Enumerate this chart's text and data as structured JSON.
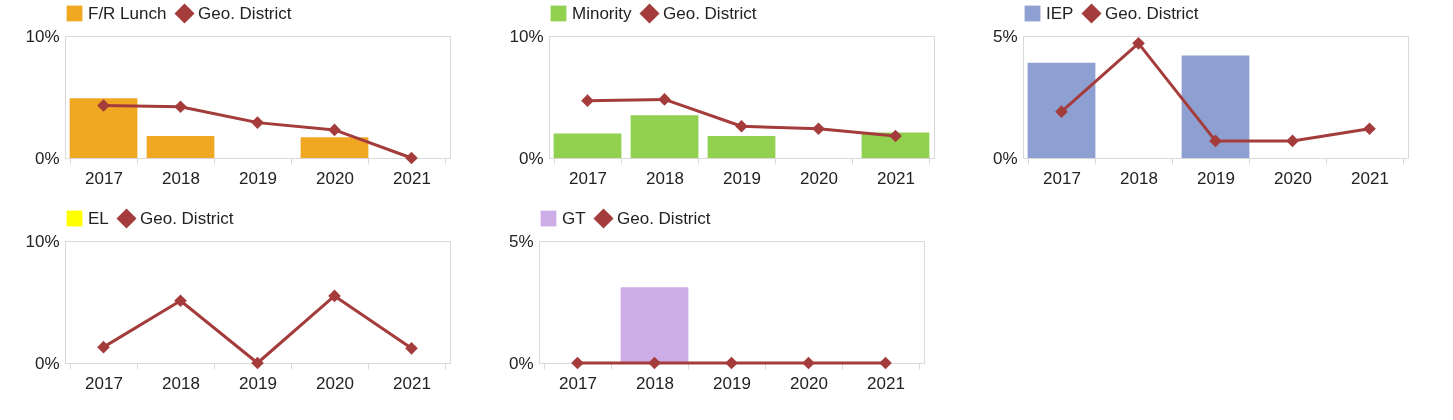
{
  "chart_data": [
    {
      "type": "bar",
      "categories": [
        "2017",
        "2018",
        "2019",
        "2020",
        "2021"
      ],
      "ylim": [
        0,
        10
      ],
      "yticks": [
        {
          "value": 0,
          "label": "0%"
        },
        {
          "value": 10,
          "label": "10%"
        }
      ],
      "legend": "top",
      "marker": "diamond",
      "series": [
        {
          "name": "F/R Lunch",
          "color": "#f0a823",
          "values": [
            4.9,
            1.8,
            0,
            1.7,
            0
          ]
        },
        {
          "name": "Geo. District",
          "type": "line",
          "color": "#a53c3c",
          "values": [
            4.3,
            4.2,
            2.9,
            2.3,
            0
          ]
        }
      ]
    },
    {
      "type": "bar",
      "categories": [
        "2017",
        "2018",
        "2019",
        "2020",
        "2021"
      ],
      "ylim": [
        0,
        10
      ],
      "yticks": [
        {
          "value": 0,
          "label": "0%"
        },
        {
          "value": 10,
          "label": "10%"
        }
      ],
      "legend": "top",
      "marker": "diamond",
      "series": [
        {
          "name": "Minority",
          "color": "#92d050",
          "values": [
            2.0,
            3.5,
            1.8,
            0,
            2.1
          ]
        },
        {
          "name": "Geo. District",
          "type": "line",
          "color": "#a53c3c",
          "values": [
            4.7,
            4.8,
            2.6,
            2.4,
            1.8
          ]
        }
      ]
    },
    {
      "type": "bar",
      "categories": [
        "2017",
        "2018",
        "2019",
        "2020",
        "2021"
      ],
      "ylim": [
        0,
        5
      ],
      "yticks": [
        {
          "value": 0,
          "label": "0%"
        },
        {
          "value": 5,
          "label": "5%"
        }
      ],
      "legend": "top",
      "marker": "diamond",
      "series": [
        {
          "name": "IEP",
          "color": "#8e9fd1",
          "values": [
            3.9,
            0,
            4.2,
            0,
            0
          ]
        },
        {
          "name": "Geo. District",
          "type": "line",
          "color": "#a53c3c",
          "values": [
            1.9,
            4.7,
            0.7,
            0.7,
            1.2
          ]
        }
      ]
    },
    {
      "type": "bar",
      "categories": [
        "2017",
        "2018",
        "2019",
        "2020",
        "2021"
      ],
      "ylim": [
        0,
        10
      ],
      "yticks": [
        {
          "value": 0,
          "label": "0%"
        },
        {
          "value": 10,
          "label": "10%"
        }
      ],
      "legend": "top",
      "marker": "diamond",
      "series": [
        {
          "name": "EL",
          "color": "#ffff00",
          "values": [
            0,
            0,
            0,
            0,
            0
          ]
        },
        {
          "name": "Geo. District",
          "type": "line",
          "color": "#a53c3c",
          "values": [
            1.3,
            5.1,
            0,
            5.5,
            1.2
          ]
        }
      ]
    },
    {
      "type": "bar",
      "categories": [
        "2017",
        "2018",
        "2019",
        "2020",
        "2021"
      ],
      "ylim": [
        0,
        5
      ],
      "yticks": [
        {
          "value": 0,
          "label": "0%"
        },
        {
          "value": 5,
          "label": "5%"
        }
      ],
      "legend": "top",
      "marker": "diamond",
      "series": [
        {
          "name": "GT",
          "color": "#cdade6",
          "values": [
            0,
            3.1,
            0,
            0,
            0
          ]
        },
        {
          "name": "Geo. District",
          "type": "line",
          "color": "#a53c3c",
          "values": [
            0,
            0,
            0,
            0,
            0
          ]
        }
      ]
    }
  ]
}
